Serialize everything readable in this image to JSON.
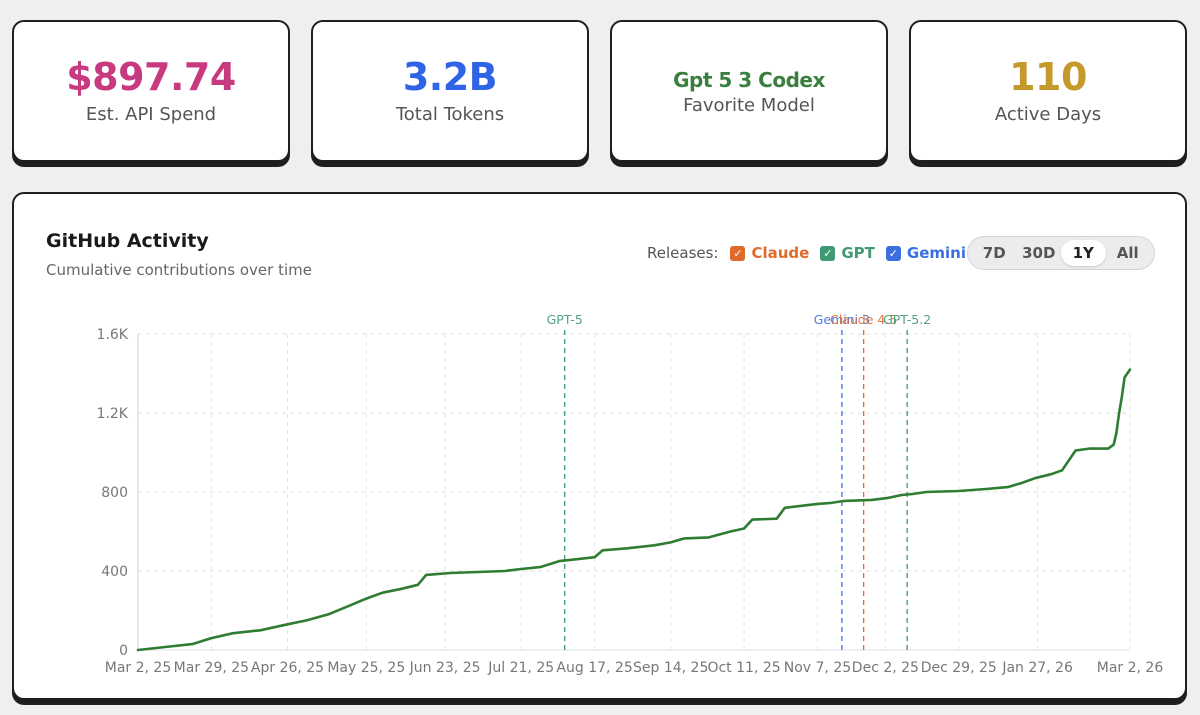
{
  "stats": [
    {
      "value": "$897.74",
      "label": "Est. API Spend",
      "color": "#c73a80"
    },
    {
      "value": "3.2B",
      "label": "Total Tokens",
      "color": "#2f64e6"
    },
    {
      "value": "Gpt 5 3 Codex",
      "label": "Favorite Model",
      "color": "#3a7f3f"
    },
    {
      "value": "110",
      "label": "Active Days",
      "color": "#c39a2b"
    }
  ],
  "chart": {
    "title": "GitHub Activity",
    "subtitle": "Cumulative contributions over time",
    "releases_label": "Releases:",
    "release_toggles": [
      {
        "label": "Claude",
        "color": "#e06a2c",
        "checked": true
      },
      {
        "label": "GPT",
        "color": "#3e9a72",
        "checked": true
      },
      {
        "label": "Gemini",
        "color": "#3b6fe0",
        "checked": true
      }
    ],
    "ranges": [
      {
        "label": "7D",
        "active": false
      },
      {
        "label": "30D",
        "active": false
      },
      {
        "label": "1Y",
        "active": true
      },
      {
        "label": "All",
        "active": false
      }
    ]
  },
  "chart_data": {
    "type": "line",
    "title": "GitHub Activity",
    "subtitle": "Cumulative contributions over time",
    "xlabel": "",
    "ylabel": "",
    "ylim": [
      0,
      1600
    ],
    "y_ticks": [
      0,
      400,
      800,
      1200,
      1600
    ],
    "y_tick_labels": [
      "0",
      "400",
      "800",
      "1.2K",
      "1.6K"
    ],
    "x_range_days": [
      0,
      365
    ],
    "x_ticks": [
      {
        "day": 0,
        "label": "Mar 2, 25"
      },
      {
        "day": 27,
        "label": "Mar 29, 25"
      },
      {
        "day": 55,
        "label": "Apr 26, 25"
      },
      {
        "day": 84,
        "label": "May 25, 25"
      },
      {
        "day": 113,
        "label": "Jun 23, 25"
      },
      {
        "day": 141,
        "label": "Jul 21, 25"
      },
      {
        "day": 168,
        "label": "Aug 17, 25"
      },
      {
        "day": 196,
        "label": "Sep 14, 25"
      },
      {
        "day": 223,
        "label": "Oct 11, 25"
      },
      {
        "day": 250,
        "label": "Nov 7, 25"
      },
      {
        "day": 275,
        "label": "Dec 2, 25"
      },
      {
        "day": 302,
        "label": "Dec 29, 25"
      },
      {
        "day": 331,
        "label": "Jan 27, 26"
      },
      {
        "day": 365,
        "label": "Mar 2, 26"
      }
    ],
    "grid": true,
    "series": [
      {
        "name": "Cumulative contributions",
        "color": "#2e7d32",
        "points": [
          [
            0,
            0
          ],
          [
            10,
            15
          ],
          [
            20,
            30
          ],
          [
            27,
            60
          ],
          [
            35,
            85
          ],
          [
            45,
            100
          ],
          [
            55,
            130
          ],
          [
            62,
            150
          ],
          [
            70,
            180
          ],
          [
            77,
            220
          ],
          [
            84,
            260
          ],
          [
            90,
            290
          ],
          [
            97,
            310
          ],
          [
            103,
            330
          ],
          [
            106,
            380
          ],
          [
            115,
            390
          ],
          [
            125,
            395
          ],
          [
            135,
            400
          ],
          [
            141,
            410
          ],
          [
            148,
            420
          ],
          [
            155,
            450
          ],
          [
            162,
            460
          ],
          [
            168,
            470
          ],
          [
            171,
            505
          ],
          [
            180,
            515
          ],
          [
            190,
            530
          ],
          [
            196,
            545
          ],
          [
            201,
            565
          ],
          [
            210,
            570
          ],
          [
            218,
            600
          ],
          [
            223,
            615
          ],
          [
            226,
            660
          ],
          [
            235,
            665
          ],
          [
            238,
            720
          ],
          [
            250,
            740
          ],
          [
            255,
            745
          ],
          [
            260,
            755
          ],
          [
            270,
            760
          ],
          [
            276,
            770
          ],
          [
            281,
            785
          ],
          [
            285,
            790
          ],
          [
            290,
            800
          ],
          [
            302,
            805
          ],
          [
            312,
            815
          ],
          [
            320,
            825
          ],
          [
            325,
            845
          ],
          [
            330,
            870
          ],
          [
            336,
            890
          ],
          [
            340,
            910
          ],
          [
            343,
            970
          ],
          [
            345,
            1010
          ],
          [
            350,
            1020
          ],
          [
            357,
            1020
          ],
          [
            359,
            1040
          ],
          [
            360,
            1100
          ],
          [
            361,
            1200
          ],
          [
            362,
            1280
          ],
          [
            363,
            1380
          ],
          [
            365,
            1420
          ]
        ]
      }
    ],
    "release_markers": [
      {
        "label": "GPT-5",
        "day": 157,
        "family": "GPT",
        "color": "#3e9a72"
      },
      {
        "label": "Gemini 3",
        "day": 259,
        "family": "Gemini",
        "color": "#3b6fe0"
      },
      {
        "label": "Claude 4.5",
        "day": 267,
        "family": "Claude",
        "color": "#e06a2c"
      },
      {
        "label": "GPT-5.2",
        "day": 283,
        "family": "GPT",
        "color": "#3e9a72"
      }
    ]
  }
}
